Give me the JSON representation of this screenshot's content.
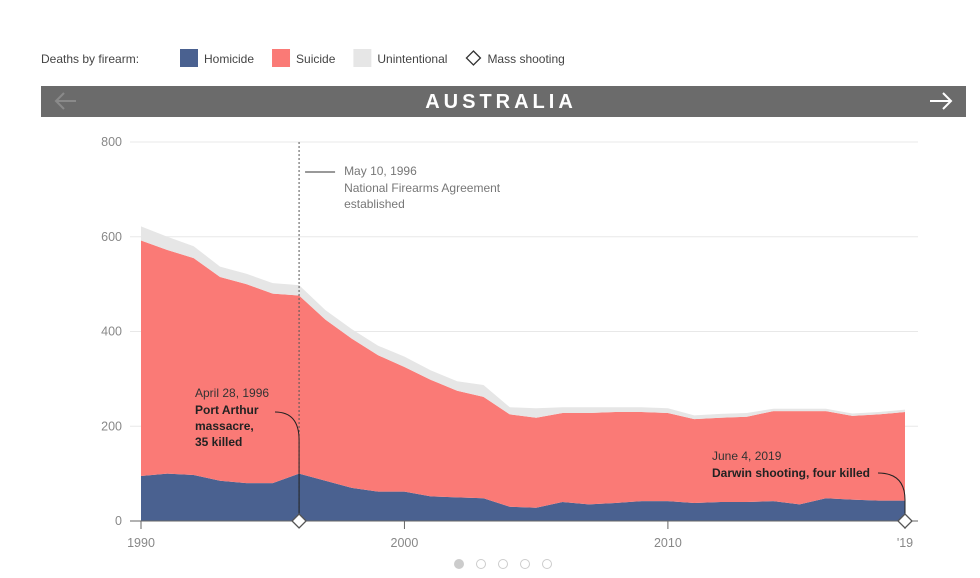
{
  "chart_data": {
    "type": "stacked_area",
    "title": "AUSTRALIA",
    "legend_title": "Deaths by firearm:",
    "x": [
      1990,
      1991,
      1992,
      1993,
      1994,
      1995,
      1996,
      1997,
      1998,
      1999,
      2000,
      2001,
      2002,
      2003,
      2004,
      2005,
      2006,
      2007,
      2008,
      2009,
      2010,
      2011,
      2012,
      2013,
      2014,
      2015,
      2016,
      2017,
      2018,
      2019
    ],
    "series": [
      {
        "name": "Homicide",
        "color": "#4a6190",
        "values": [
          95,
          100,
          97,
          85,
          80,
          80,
          100,
          85,
          70,
          62,
          62,
          52,
          50,
          48,
          30,
          28,
          40,
          35,
          38,
          42,
          42,
          38,
          40,
          40,
          42,
          35,
          48,
          45,
          43,
          43
        ]
      },
      {
        "name": "Suicide",
        "color": "#fa7a76",
        "values": [
          497,
          472,
          458,
          430,
          420,
          400,
          376,
          340,
          315,
          288,
          263,
          246,
          225,
          214,
          195,
          190,
          188,
          193,
          192,
          188,
          186,
          177,
          178,
          180,
          190,
          197,
          184,
          177,
          182,
          187
        ]
      },
      {
        "name": "Unintentional",
        "color": "#e6e6e6",
        "values": [
          30,
          28,
          25,
          22,
          22,
          22,
          22,
          20,
          20,
          20,
          22,
          20,
          20,
          25,
          15,
          20,
          12,
          12,
          10,
          10,
          10,
          8,
          8,
          8,
          5,
          5,
          5,
          5,
          5,
          5
        ]
      }
    ],
    "mass_shootings": {
      "name": "Mass shooting",
      "x": [
        1996,
        2019
      ]
    },
    "annotations": [
      {
        "x": 1996,
        "date": "May 10, 1996",
        "lines": [
          "National Firearms Agreement",
          "established"
        ]
      },
      {
        "x": 1996,
        "date": "April 28, 1996",
        "lines": [
          "Port Arthur",
          "massacre,",
          "35 killed"
        ]
      },
      {
        "x": 2019,
        "date": "June 4, 2019",
        "lines": [
          "Darwin shooting, four killed"
        ]
      }
    ],
    "xlim": [
      1990,
      2019
    ],
    "xticks": [
      1990,
      2000,
      2010,
      {
        "value": 2019,
        "label": "'19"
      }
    ],
    "ylim": [
      0,
      800
    ],
    "yticks": [
      0,
      200,
      400,
      600,
      800
    ],
    "grid": true
  }
}
